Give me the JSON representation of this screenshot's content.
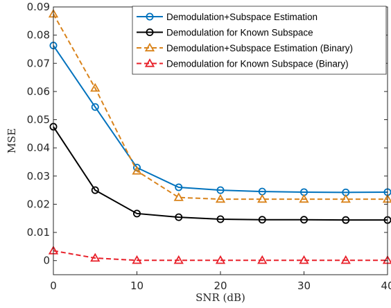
{
  "chart_data": {
    "type": "line",
    "xlabel": "SNR (dB)",
    "ylabel": "MSE",
    "xlim": [
      0,
      40
    ],
    "ylim": [
      -0.005,
      0.09
    ],
    "xticks": [
      0,
      10,
      20,
      30,
      40
    ],
    "yticks": [
      0,
      0.01,
      0.02,
      0.03,
      0.04,
      0.05,
      0.06,
      0.07,
      0.08,
      0.09
    ],
    "xtick_labels": [
      "0",
      "10",
      "20",
      "30",
      "40"
    ],
    "ytick_labels": [
      "0",
      "0.01",
      "0.02",
      "0.03",
      "0.04",
      "0.05",
      "0.06",
      "0.07",
      "0.08",
      "0.09"
    ],
    "grid": false,
    "legend_position": "top-right",
    "x": [
      0,
      5,
      10,
      15,
      20,
      25,
      30,
      35,
      40
    ],
    "series": [
      {
        "name": "Demodulation+Subspace Estimation",
        "values": [
          0.0763,
          0.0545,
          0.033,
          0.026,
          0.025,
          0.0245,
          0.0243,
          0.0242,
          0.0243
        ],
        "color": "#0072BD",
        "marker": "circle",
        "dash": "solid"
      },
      {
        "name": "Demodulation for Known Subspace",
        "values": [
          0.0475,
          0.025,
          0.0167,
          0.0154,
          0.0147,
          0.0145,
          0.0145,
          0.0144,
          0.0144
        ],
        "color": "#000000",
        "marker": "circle",
        "dash": "solid"
      },
      {
        "name": "Demodulation+Subspace Estimation (Binary)",
        "values": [
          0.0875,
          0.0612,
          0.0318,
          0.0224,
          0.0218,
          0.0218,
          0.0218,
          0.0218,
          0.0218
        ],
        "color": "#D9831B",
        "marker": "triangle",
        "dash": "dashed"
      },
      {
        "name": "Demodulation for Known Subspace (Binary)",
        "values": [
          0.0035,
          0.0009,
          0.0001,
          0.0001,
          0.0001,
          0.0001,
          0.0001,
          0.0001,
          0.0001
        ],
        "color": "#E8202A",
        "marker": "triangle",
        "dash": "dashed"
      }
    ]
  }
}
